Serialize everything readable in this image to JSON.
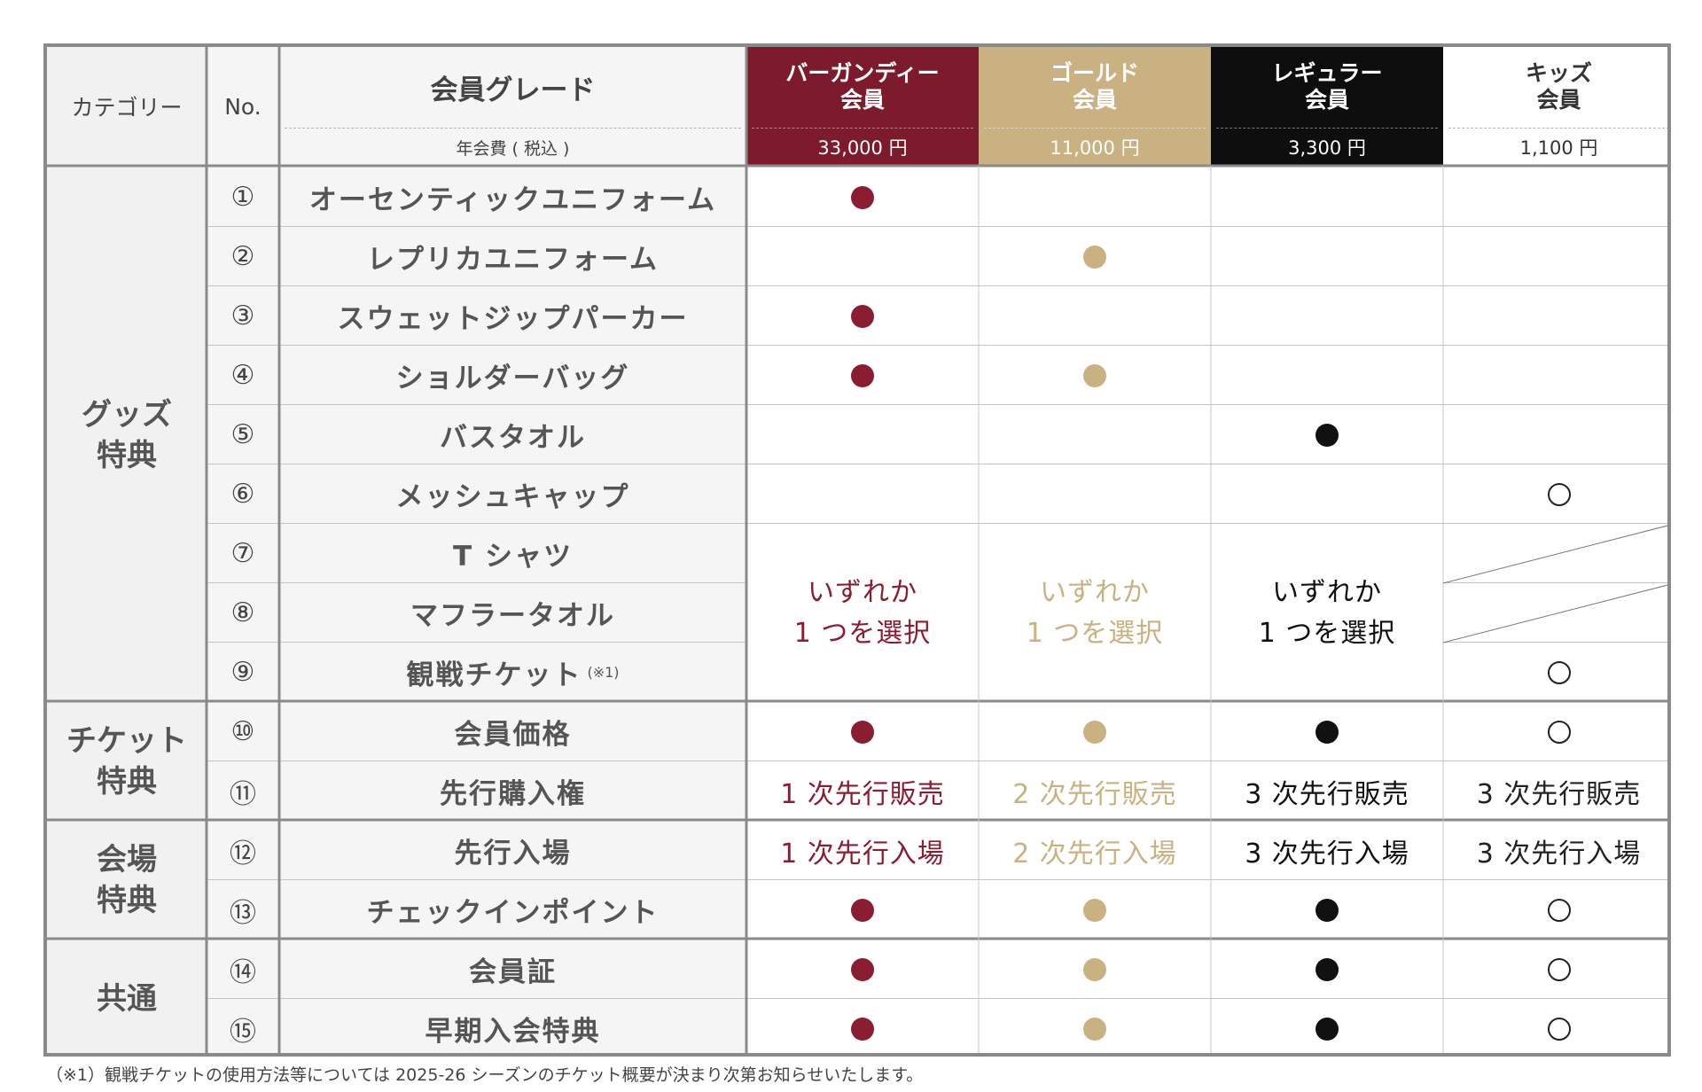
{
  "header": {
    "category_label": "カテゴリー",
    "no_label": "No.",
    "grade_label": "会員グレード",
    "fee_label": "年会費 ( 税込 )"
  },
  "tiers": [
    {
      "name": "バーガンディー\n会員",
      "fee": "33,000 円",
      "color": "#7d1b2d",
      "text_color": "#ffffff",
      "accent": "#8b1d32"
    },
    {
      "name": "ゴールド\n会員",
      "fee": "11,000 円",
      "color": "#c9b182",
      "text_color": "#ffffff",
      "accent": "#c9b182"
    },
    {
      "name": "レギュラー\n会員",
      "fee": "3,300 円",
      "color": "#0e0e0e",
      "text_color": "#ffffff",
      "accent": "#111111"
    },
    {
      "name": "キッズ\n会員",
      "fee": "1,100 円",
      "color": "#ffffff",
      "text_color": "#333333",
      "accent": "#222222"
    }
  ],
  "categories": [
    {
      "label": "グッズ\n特典"
    },
    {
      "label": "チケット\n特典"
    },
    {
      "label": "会場\n特典"
    },
    {
      "label": "共通"
    }
  ],
  "rows": [
    {
      "no": "①",
      "item": "オーセンティックユニフォーム",
      "marks": [
        "dot",
        "",
        "",
        ""
      ]
    },
    {
      "no": "②",
      "item": "レプリカユニフォーム",
      "marks": [
        "",
        "dot",
        "",
        ""
      ]
    },
    {
      "no": "③",
      "item": "スウェットジップパーカー",
      "marks": [
        "dot",
        "",
        "",
        ""
      ]
    },
    {
      "no": "④",
      "item": "ショルダーバッグ",
      "marks": [
        "dot",
        "dot",
        "",
        ""
      ]
    },
    {
      "no": "⑤",
      "item": "バスタオル",
      "marks": [
        "",
        "",
        "dot",
        ""
      ]
    },
    {
      "no": "⑥",
      "item": "メッシュキャップ",
      "marks": [
        "",
        "",
        "",
        "ring"
      ]
    },
    {
      "no": "⑦",
      "item": "T シャツ",
      "marks": []
    },
    {
      "no": "⑧",
      "item": "マフラータオル",
      "marks": []
    },
    {
      "no": "⑨",
      "item": "観戦チケット",
      "note": "(※1)",
      "marks": []
    },
    {
      "no": "⑩",
      "item": "会員価格",
      "marks": [
        "dot",
        "dot",
        "dot",
        "ring"
      ]
    },
    {
      "no": "⑪",
      "item": "先行購入権",
      "values": [
        "1 次先行販売",
        "2 次先行販売",
        "3 次先行販売",
        "3 次先行販売"
      ]
    },
    {
      "no": "⑫",
      "item": "先行入場",
      "values": [
        "1 次先行入場",
        "2 次先行入場",
        "3 次先行入場",
        "3 次先行入場"
      ]
    },
    {
      "no": "⑬",
      "item": "チェックインポイント",
      "marks": [
        "dot",
        "dot",
        "dot",
        "ring"
      ]
    },
    {
      "no": "⑭",
      "item": "会員証",
      "marks": [
        "dot",
        "dot",
        "dot",
        "ring"
      ]
    },
    {
      "no": "⑮",
      "item": "早期入会特典",
      "marks": [
        "dot",
        "dot",
        "dot",
        "ring"
      ]
    }
  ],
  "choose_one": {
    "line1": "いずれか",
    "line2": "1 つを選択",
    "kids_row9_mark": "ring"
  },
  "footnote": "（※1）観戦チケットの使用方法等については 2025-26 シーズンのチケット概要が決まり次第お知らせいたします。"
}
